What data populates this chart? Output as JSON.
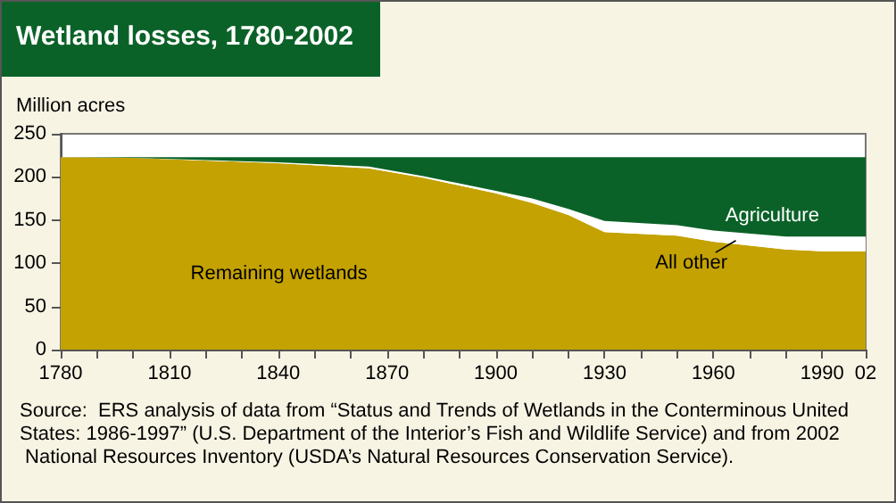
{
  "chart_data": {
    "type": "area",
    "title": "Wetland losses, 1780-2002",
    "ylabel": "Million acres",
    "x": [
      1780,
      1800,
      1840,
      1865,
      1880,
      1900,
      1910,
      1920,
      1930,
      1950,
      1960,
      1980,
      1990,
      2002
    ],
    "series": [
      {
        "name": "Remaining wetlands",
        "color": "#c4a202",
        "values": [
          223,
          222,
          216,
          210,
          199,
          181,
          170,
          156,
          136,
          132,
          125,
          116,
          114,
          114
        ]
      },
      {
        "name": "All other",
        "color": "#ffffff",
        "values": [
          0,
          0,
          1,
          2,
          2,
          3,
          5,
          7,
          13,
          12,
          13,
          15,
          17,
          17
        ]
      },
      {
        "name": "Agriculture",
        "color": "#0b6228",
        "values": [
          0,
          1,
          6,
          11,
          22,
          39,
          48,
          60,
          74,
          79,
          85,
          92,
          92,
          92
        ]
      }
    ],
    "stacked": true,
    "grid": false,
    "legend": false,
    "xlim": [
      1780,
      2002
    ],
    "xticks": [
      1780,
      {
        "value": 1790,
        "label": null
      },
      {
        "value": 1800,
        "label": null
      },
      1810,
      {
        "value": 1820,
        "label": null
      },
      {
        "value": 1830,
        "label": null
      },
      1840,
      {
        "value": 1850,
        "label": null
      },
      {
        "value": 1860,
        "label": null
      },
      1870,
      {
        "value": 1880,
        "label": null
      },
      {
        "value": 1890,
        "label": null
      },
      1900,
      {
        "value": 1910,
        "label": null
      },
      {
        "value": 1920,
        "label": null
      },
      1930,
      {
        "value": 1940,
        "label": null
      },
      {
        "value": 1950,
        "label": null
      },
      1960,
      {
        "value": 1970,
        "label": null
      },
      {
        "value": 1980,
        "label": null
      },
      1990,
      {
        "value": 2002,
        "label": "02"
      }
    ],
    "ylim": [
      0,
      250
    ],
    "yticks": [
      0,
      50,
      100,
      150,
      200,
      250
    ],
    "annotations": [
      "Source:  ERS analysis of data from “Status and Trends of Wetlands in the Conterminous United States: 1986-1997” (U.S. Department of the Interior’s Fish and Wildlife Service) and from 2002 National Resources Inventory (USDA’s Natural Resources Conservation Service)."
    ]
  }
}
